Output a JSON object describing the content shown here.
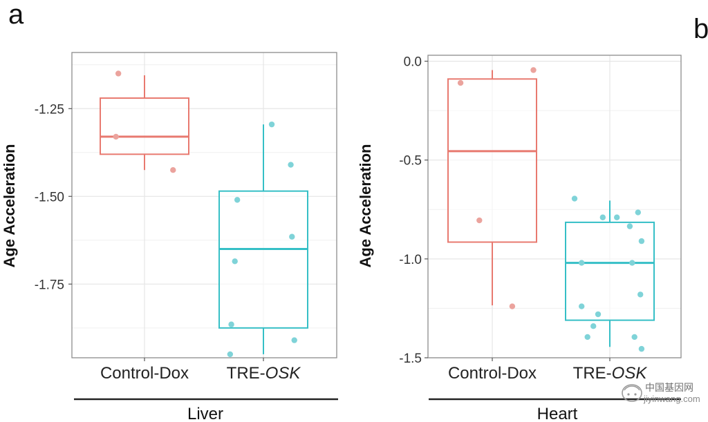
{
  "panel_labels": [
    "a",
    "b"
  ],
  "watermark": {
    "cn": "中国基因网",
    "url": "jiyinwang.com"
  },
  "colors": {
    "control": "#e8796f",
    "control_point": "#eba39d",
    "treatment": "#35bfc6",
    "treatment_point": "#7fd3d8",
    "grid": "#e6e6e6",
    "panel_border": "#8c8c8c"
  },
  "chart_data": [
    {
      "type": "box",
      "panel": "a",
      "group_label": "Liver",
      "ylabel": "Age Acceleration",
      "ylim": [
        -1.96,
        -1.09
      ],
      "yticks": [
        -1.25,
        -1.5,
        -1.75
      ],
      "ytick_labels": [
        "-1.25",
        "-1.50",
        "-1.75"
      ],
      "grid": true,
      "categories": [
        {
          "prefix": "Control-",
          "suffix": "Dox",
          "suffix_italic": false
        },
        {
          "prefix": "TRE-",
          "suffix": "OSK",
          "suffix_italic": true
        }
      ],
      "boxes": [
        {
          "whisker_low": -1.425,
          "q1": -1.38,
          "median": -1.33,
          "q3": -1.22,
          "whisker_high": -1.155
        },
        {
          "whisker_low": -1.95,
          "q1": -1.875,
          "median": -1.65,
          "q3": -1.485,
          "whisker_high": -1.295
        }
      ],
      "points": [
        [
          [
            0.78,
            -1.15
          ],
          [
            0.76,
            -1.33
          ],
          [
            1.24,
            -1.425
          ]
        ],
        [
          [
            1.78,
            -1.51
          ],
          [
            1.76,
            -1.685
          ],
          [
            1.73,
            -1.865
          ],
          [
            1.72,
            -1.95
          ],
          [
            2.07,
            -1.295
          ],
          [
            2.23,
            -1.41
          ],
          [
            2.24,
            -1.615
          ],
          [
            2.26,
            -1.91
          ]
        ]
      ]
    },
    {
      "type": "box",
      "panel": "b",
      "group_label": "Heart",
      "ylabel": "Age Acceleration",
      "ylim": [
        -1.5,
        0.03
      ],
      "yticks": [
        0.0,
        -0.5,
        -1.0,
        -1.5
      ],
      "ytick_labels": [
        "0.0",
        "-0.5",
        "-1.0",
        "-1.5"
      ],
      "grid": true,
      "categories": [
        {
          "prefix": "Control-",
          "suffix": "Dox",
          "suffix_italic": false
        },
        {
          "prefix": "TRE-",
          "suffix": "OSK",
          "suffix_italic": true
        }
      ],
      "boxes": [
        {
          "whisker_low": -1.235,
          "q1": -0.915,
          "median": -0.455,
          "q3": -0.09,
          "whisker_high": -0.045
        },
        {
          "whisker_low": -1.445,
          "q1": -1.31,
          "median": -1.02,
          "q3": -0.815,
          "whisker_high": -0.705
        }
      ],
      "points": [
        [
          [
            0.73,
            -0.11
          ],
          [
            0.89,
            -0.805
          ],
          [
            1.17,
            -1.24
          ],
          [
            1.35,
            -0.045
          ]
        ],
        [
          [
            1.7,
            -0.695
          ],
          [
            1.76,
            -1.02
          ],
          [
            1.76,
            -1.24
          ],
          [
            1.81,
            -1.395
          ],
          [
            1.86,
            -1.34
          ],
          [
            1.9,
            -1.28
          ],
          [
            1.94,
            -0.79
          ],
          [
            2.06,
            -0.79
          ],
          [
            2.17,
            -0.835
          ],
          [
            2.19,
            -1.02
          ],
          [
            2.21,
            -1.395
          ],
          [
            2.24,
            -0.765
          ],
          [
            2.26,
            -1.18
          ],
          [
            2.27,
            -0.91
          ],
          [
            2.27,
            -1.455
          ]
        ]
      ]
    }
  ]
}
